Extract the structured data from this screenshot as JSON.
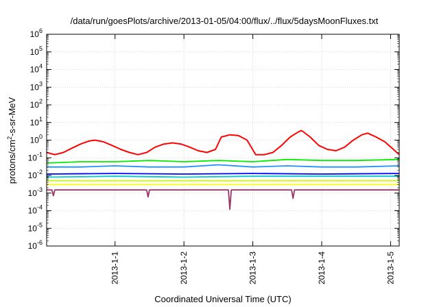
{
  "chart_data": {
    "type": "line",
    "title": "/data/run/goesPlots/archive/2013-01-05/04:00/flux/../flux/5daysMoonFluxes.txt",
    "xlabel": "Coordinated Universal Time (UTC)",
    "ylabel_parts": {
      "base": "protons/cm",
      "sup": "2",
      "rest": "-s-sr-MeV"
    },
    "yscale": "log",
    "ylim": [
      1e-06,
      1000000.0
    ],
    "x_range_days": [
      "2012-12-31T00:10",
      "2013-01-05T03:00"
    ],
    "x_ticks": [
      {
        "label": "2013-1-1",
        "date": "2013-01-01"
      },
      {
        "label": "2013-1-2",
        "date": "2013-01-02"
      },
      {
        "label": "2013-1-3",
        "date": "2013-01-03"
      },
      {
        "label": "2013-1-4",
        "date": "2013-01-04"
      },
      {
        "label": "2013-1-5",
        "date": "2013-01-05"
      }
    ],
    "y_ticks": [
      {
        "base": "10",
        "exp": "6"
      },
      {
        "base": "10",
        "exp": "5"
      },
      {
        "base": "10",
        "exp": "4"
      },
      {
        "base": "10",
        "exp": "3"
      },
      {
        "base": "10",
        "exp": "2"
      },
      {
        "base": "10",
        "exp": "1"
      },
      {
        "base": "10",
        "exp": "0"
      },
      {
        "base": "10",
        "exp": "-1"
      },
      {
        "base": "10",
        "exp": "-2"
      },
      {
        "base": "10",
        "exp": "-3"
      },
      {
        "base": "10",
        "exp": "-4"
      },
      {
        "base": "10",
        "exp": "-5"
      },
      {
        "base": "10",
        "exp": "-6"
      }
    ],
    "grid": true,
    "legend": "none",
    "series": [
      {
        "color": "#ff0000",
        "points": [
          [
            "2012-12-31T00:10",
            0.2
          ],
          [
            "2012-12-31T03:00",
            0.15
          ],
          [
            "2012-12-31T06:00",
            0.2
          ],
          [
            "2012-12-31T09:00",
            0.35
          ],
          [
            "2012-12-31T12:00",
            0.6
          ],
          [
            "2012-12-31T15:00",
            0.9
          ],
          [
            "2012-12-31T17:00",
            1.0
          ],
          [
            "2012-12-31T20:00",
            0.8
          ],
          [
            "2012-12-31T23:00",
            0.5
          ],
          [
            "2013-01-01T02:00",
            0.3
          ],
          [
            "2013-01-01T05:00",
            0.2
          ],
          [
            "2013-01-01T08:00",
            0.15
          ],
          [
            "2013-01-01T11:00",
            0.2
          ],
          [
            "2013-01-01T14:00",
            0.4
          ],
          [
            "2013-01-01T17:00",
            0.6
          ],
          [
            "2013-01-01T20:00",
            0.7
          ],
          [
            "2013-01-01T23:00",
            0.6
          ],
          [
            "2013-01-02T02:00",
            0.4
          ],
          [
            "2013-01-02T05:00",
            0.25
          ],
          [
            "2013-01-02T08:00",
            0.2
          ],
          [
            "2013-01-02T11:00",
            0.3
          ],
          [
            "2013-01-02T13:00",
            1.5
          ],
          [
            "2013-01-02T16:00",
            2.0
          ],
          [
            "2013-01-02T19:00",
            1.8
          ],
          [
            "2013-01-02T22:00",
            1.0
          ],
          [
            "2013-01-03T01:00",
            0.15
          ],
          [
            "2013-01-03T04:00",
            0.15
          ],
          [
            "2013-01-03T07:00",
            0.2
          ],
          [
            "2013-01-03T10:00",
            0.5
          ],
          [
            "2013-01-03T13:00",
            1.5
          ],
          [
            "2013-01-03T16:00",
            3.0
          ],
          [
            "2013-01-03T17:00",
            3.5
          ],
          [
            "2013-01-03T20:00",
            1.5
          ],
          [
            "2013-01-03T23:00",
            0.5
          ],
          [
            "2013-01-04T02:00",
            0.3
          ],
          [
            "2013-01-04T05:00",
            0.25
          ],
          [
            "2013-01-04T08:00",
            0.4
          ],
          [
            "2013-01-04T11:00",
            1.0
          ],
          [
            "2013-01-04T14:00",
            2.0
          ],
          [
            "2013-01-04T16:00",
            2.5
          ],
          [
            "2013-01-04T19:00",
            1.5
          ],
          [
            "2013-01-04T22:00",
            0.8
          ],
          [
            "2013-01-05T01:00",
            0.3
          ],
          [
            "2013-01-05T03:00",
            0.15
          ]
        ]
      },
      {
        "color": "#00ee00",
        "points": [
          [
            "2012-12-31T00:10",
            0.05
          ],
          [
            "2012-12-31T12:00",
            0.06
          ],
          [
            "2013-01-01T00:00",
            0.06
          ],
          [
            "2013-01-01T12:00",
            0.07
          ],
          [
            "2013-01-02T00:00",
            0.06
          ],
          [
            "2013-01-02T12:00",
            0.07
          ],
          [
            "2013-01-03T00:00",
            0.06
          ],
          [
            "2013-01-03T12:00",
            0.08
          ],
          [
            "2013-01-04T00:00",
            0.07
          ],
          [
            "2013-01-04T12:00",
            0.07
          ],
          [
            "2013-01-05T03:00",
            0.08
          ]
        ]
      },
      {
        "color": "#1e90ff",
        "points": [
          [
            "2012-12-31T00:10",
            0.03
          ],
          [
            "2012-12-31T12:00",
            0.03
          ],
          [
            "2013-01-01T00:00",
            0.035
          ],
          [
            "2013-01-01T12:00",
            0.03
          ],
          [
            "2013-01-02T00:00",
            0.03
          ],
          [
            "2013-01-02T12:00",
            0.04
          ],
          [
            "2013-01-03T00:00",
            0.03
          ],
          [
            "2013-01-03T12:00",
            0.035
          ],
          [
            "2013-01-04T00:00",
            0.03
          ],
          [
            "2013-01-04T12:00",
            0.03
          ],
          [
            "2013-01-05T03:00",
            0.035
          ]
        ]
      },
      {
        "color": "#00cccc",
        "points": [
          [
            "2012-12-31T00:10",
            0.008
          ],
          [
            "2013-01-01T00:00",
            0.009
          ],
          [
            "2013-01-02T00:00",
            0.008
          ],
          [
            "2013-01-03T00:00",
            0.009
          ],
          [
            "2013-01-04T00:00",
            0.009
          ],
          [
            "2013-01-05T03:00",
            0.009
          ]
        ]
      },
      {
        "color": "#0000ff",
        "points": [
          [
            "2012-12-31T00:10",
            0.012
          ],
          [
            "2013-01-01T00:00",
            0.013
          ],
          [
            "2013-01-02T00:00",
            0.012
          ],
          [
            "2013-01-03T00:00",
            0.013
          ],
          [
            "2013-01-04T00:00",
            0.012
          ],
          [
            "2013-01-05T03:00",
            0.013
          ]
        ]
      },
      {
        "color": "#ccff00",
        "points": [
          [
            "2012-12-31T00:10",
            0.005
          ],
          [
            "2013-01-01T00:00",
            0.005
          ],
          [
            "2013-01-02T00:00",
            0.005
          ],
          [
            "2013-01-03T00:00",
            0.005
          ],
          [
            "2013-01-04T00:00",
            0.005
          ],
          [
            "2013-01-05T03:00",
            0.005
          ]
        ]
      },
      {
        "color": "#ffff00",
        "points": [
          [
            "2012-12-31T00:10",
            0.003
          ],
          [
            "2013-01-01T00:00",
            0.003
          ],
          [
            "2013-01-02T00:00",
            0.003
          ],
          [
            "2013-01-03T00:00",
            0.003
          ],
          [
            "2013-01-04T00:00",
            0.003
          ],
          [
            "2013-01-05T03:00",
            0.003
          ]
        ]
      },
      {
        "color": "#993366",
        "points": [
          [
            "2012-12-31T00:10",
            0.0015
          ],
          [
            "2012-12-31T02:00",
            0.0015
          ],
          [
            "2012-12-31T02:30",
            0.0007
          ],
          [
            "2012-12-31T03:00",
            0.0015
          ],
          [
            "2013-01-01T00:00",
            0.0015
          ],
          [
            "2013-01-01T11:00",
            0.0015
          ],
          [
            "2013-01-01T11:30",
            0.0006
          ],
          [
            "2013-01-01T12:00",
            0.0015
          ],
          [
            "2013-01-02T15:30",
            0.0015
          ],
          [
            "2013-01-02T16:00",
            0.00012
          ],
          [
            "2013-01-02T16:30",
            0.0015
          ],
          [
            "2013-01-03T13:30",
            0.0015
          ],
          [
            "2013-01-03T14:00",
            0.0005
          ],
          [
            "2013-01-03T14:30",
            0.0015
          ],
          [
            "2013-01-05T03:00",
            0.0015
          ]
        ]
      }
    ]
  }
}
